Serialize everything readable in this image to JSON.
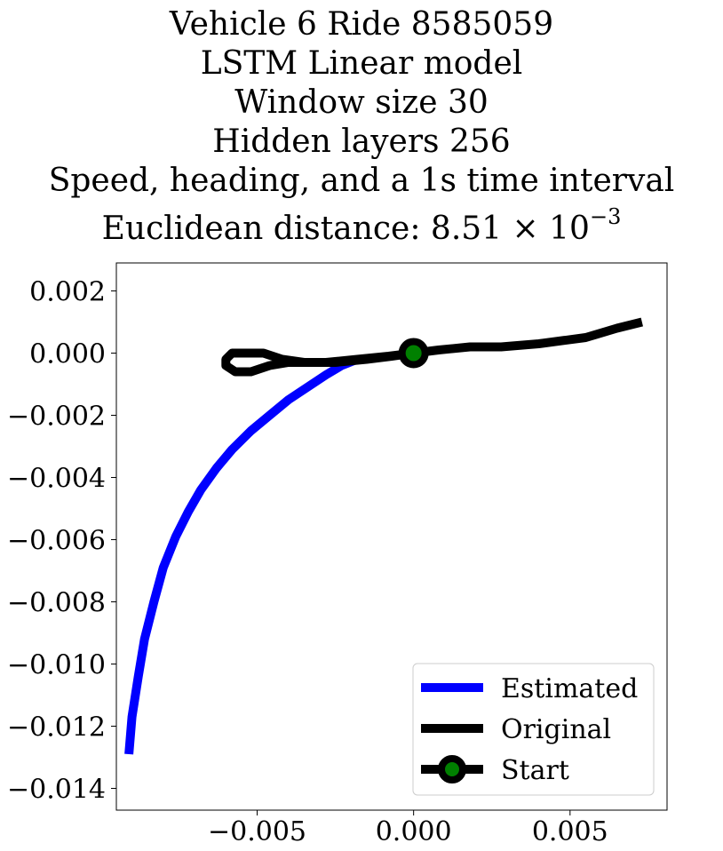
{
  "title_lines": [
    "Vehicle 6 Ride 8585059",
    "LSTM Linear model",
    "Window size 30",
    "Hidden layers 256",
    "Speed, heading, and a 1s time interval",
    "Euclidean distance: 8.51 × 10"
  ],
  "title_exponent": "−3",
  "chart_data": {
    "type": "line",
    "title": "Vehicle 6 Ride 8585059 LSTM Linear model Window size 30 Hidden layers 256 Speed, heading, and a 1s time interval Euclidean distance: 8.51 × 10^−3",
    "xlabel": "",
    "ylabel": "",
    "xlim": [
      -0.0095,
      0.0081
    ],
    "ylim": [
      -0.0147,
      0.0029
    ],
    "xticks": [
      -0.005,
      0.0,
      0.005
    ],
    "xtick_labels": [
      "−0.005",
      "0.000",
      "0.005"
    ],
    "yticks": [
      0.002,
      0.0,
      -0.002,
      -0.004,
      -0.006,
      -0.008,
      -0.01,
      -0.012,
      -0.014
    ],
    "ytick_labels": [
      "0.002",
      "0.000",
      "−0.002",
      "−0.004",
      "−0.006",
      "−0.008",
      "−0.010",
      "−0.012",
      "−0.014"
    ],
    "grid": false,
    "legend_position": "lower-right",
    "series": [
      {
        "name": "Estimated",
        "color": "#0000ff",
        "x": [
          -0.0091,
          -0.009,
          -0.0088,
          -0.0086,
          -0.0083,
          -0.008,
          -0.0076,
          -0.0072,
          -0.0068,
          -0.0063,
          -0.0058,
          -0.0052,
          -0.0046,
          -0.004,
          -0.0034,
          -0.0028,
          -0.0023,
          -0.0018
        ],
        "y": [
          -0.0129,
          -0.0117,
          -0.0104,
          -0.0092,
          -0.008,
          -0.0069,
          -0.0059,
          -0.0051,
          -0.0044,
          -0.0037,
          -0.0031,
          -0.0025,
          -0.002,
          -0.0015,
          -0.0011,
          -0.0007,
          -0.0004,
          -0.0002
        ]
      },
      {
        "name": "Original",
        "color": "#000000",
        "x": [
          0.0073,
          0.0065,
          0.0055,
          0.004,
          0.0028,
          0.0018,
          0.0008,
          0.0,
          -0.0008,
          -0.0018,
          -0.0028,
          -0.0035,
          -0.0042,
          -0.0048,
          -0.0053,
          -0.0058,
          -0.006,
          -0.006,
          -0.0057,
          -0.0052,
          -0.0046,
          -0.004,
          -0.0033,
          -0.0025,
          -0.0015,
          -0.0007,
          0.0
        ],
        "y": [
          0.001,
          0.0008,
          0.0005,
          0.0003,
          0.0002,
          0.0002,
          0.0001,
          0.0,
          -0.0001,
          -0.0002,
          -0.0003,
          -0.0003,
          -0.0002,
          0.0,
          0.0,
          0.0,
          -0.0002,
          -0.0004,
          -0.0006,
          -0.0006,
          -0.0004,
          -0.0003,
          -0.0003,
          -0.0003,
          -0.0002,
          -0.0001,
          0.0
        ]
      },
      {
        "name": "Start",
        "color": "#000000",
        "marker_color": "#008000",
        "x": [
          0.0
        ],
        "y": [
          0.0
        ]
      }
    ]
  }
}
